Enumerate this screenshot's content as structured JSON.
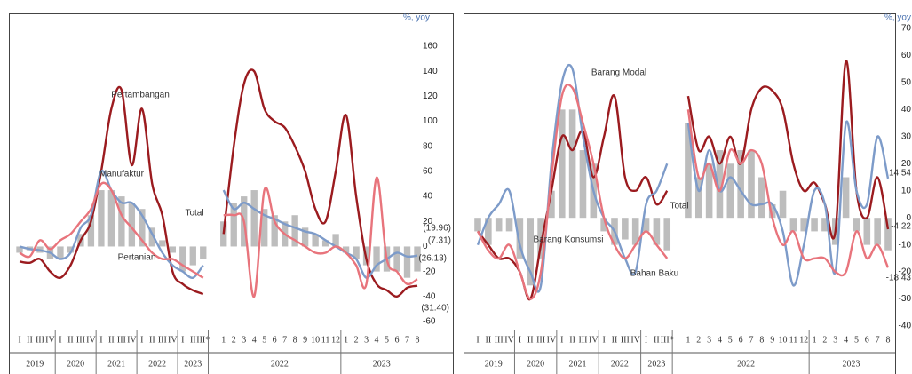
{
  "chart_data": [
    {
      "type": "line",
      "unit": "%, yoy",
      "categories": [
        "I",
        "II",
        "III",
        "IV",
        "I",
        "II",
        "III",
        "IV",
        "I",
        "II",
        "III",
        "IV",
        "I",
        "II",
        "III",
        "IV",
        "I",
        "II",
        "III*",
        null,
        "1",
        "2",
        "3",
        "4",
        "5",
        "6",
        "7",
        "8",
        "9",
        "10",
        "11",
        "12",
        "1",
        "2",
        "3",
        "4",
        "5",
        "6",
        "7",
        "8"
      ],
      "groups": [
        {
          "label": "2019",
          "span": 4
        },
        {
          "label": "2020",
          "span": 4
        },
        {
          "label": "2021",
          "span": 4
        },
        {
          "label": "2022",
          "span": 4
        },
        {
          "label": "2023",
          "span": 3
        },
        {
          "label": "2022",
          "span": 12
        },
        {
          "label": "2023",
          "span": 8
        }
      ],
      "ylim": [
        -60,
        160
      ],
      "yticks": [
        -60,
        -40,
        -20,
        0,
        20,
        40,
        60,
        80,
        100,
        120,
        140,
        160
      ],
      "series": [
        {
          "name": "Total",
          "type": "bar",
          "color": "#bdbdbd",
          "values": [
            -5,
            -3,
            -5,
            -10,
            -10,
            -5,
            10,
            25,
            45,
            45,
            40,
            35,
            30,
            15,
            5,
            -5,
            -20,
            -15,
            -10,
            null,
            20,
            35,
            40,
            45,
            30,
            25,
            20,
            25,
            15,
            10,
            5,
            10,
            -5,
            -10,
            -15,
            -20,
            -20,
            -20,
            -25,
            -19.96
          ],
          "value_labels": [
            null,
            null,
            null,
            null,
            null,
            null,
            null,
            null,
            null,
            null,
            null,
            null,
            null,
            null,
            null,
            null,
            null,
            null,
            null,
            null,
            null,
            null,
            null,
            null,
            null,
            null,
            null,
            null,
            null,
            null,
            null,
            null,
            null,
            null,
            null,
            null,
            null,
            null,
            null,
            "(19.96)"
          ]
        },
        {
          "name": "Pertambangan",
          "type": "line",
          "color": "#9b1b1f",
          "values": [
            -12,
            -13,
            -10,
            -20,
            -25,
            -15,
            5,
            20,
            60,
            110,
            125,
            65,
            110,
            50,
            25,
            -20,
            -30,
            -35,
            -38,
            null,
            10,
            80,
            130,
            140,
            110,
            100,
            95,
            80,
            60,
            30,
            20,
            60,
            105,
            40,
            -10,
            -30,
            -35,
            -40,
            -33,
            -31.4
          ],
          "value_labels": [
            null,
            null,
            null,
            null,
            null,
            null,
            null,
            null,
            null,
            null,
            null,
            null,
            null,
            null,
            null,
            null,
            null,
            null,
            null,
            null,
            null,
            null,
            null,
            null,
            null,
            null,
            null,
            null,
            null,
            null,
            null,
            null,
            null,
            null,
            null,
            null,
            null,
            null,
            null,
            "(31.40)"
          ]
        },
        {
          "name": "Manufaktur",
          "type": "line",
          "color": "#7d9bc9",
          "values": [
            0,
            -2,
            -3,
            -5,
            -10,
            -5,
            15,
            25,
            60,
            45,
            35,
            35,
            25,
            10,
            -5,
            -15,
            -20,
            -25,
            -15,
            null,
            45,
            30,
            35,
            30,
            25,
            22,
            18,
            15,
            12,
            10,
            5,
            0,
            -5,
            -10,
            -25,
            -15,
            -10,
            -5,
            -8,
            -7.31
          ],
          "value_labels": [
            null,
            null,
            null,
            null,
            null,
            null,
            null,
            null,
            null,
            null,
            null,
            null,
            null,
            null,
            null,
            null,
            null,
            null,
            null,
            null,
            null,
            null,
            null,
            null,
            null,
            null,
            null,
            null,
            null,
            null,
            null,
            null,
            null,
            null,
            null,
            null,
            null,
            null,
            null,
            "(7.31)"
          ]
        },
        {
          "name": "Pertanian",
          "type": "line",
          "color": "#e8747c",
          "values": [
            -5,
            -8,
            5,
            -2,
            5,
            10,
            20,
            30,
            50,
            45,
            25,
            15,
            5,
            -5,
            -10,
            -10,
            -15,
            -20,
            -25,
            null,
            25,
            25,
            20,
            -40,
            45,
            20,
            10,
            5,
            0,
            -5,
            -5,
            0,
            -5,
            -15,
            -30,
            55,
            -10,
            -20,
            -30,
            -26.13
          ],
          "value_labels": [
            null,
            null,
            null,
            null,
            null,
            null,
            null,
            null,
            null,
            null,
            null,
            null,
            null,
            null,
            null,
            null,
            null,
            null,
            null,
            null,
            null,
            null,
            null,
            null,
            null,
            null,
            null,
            null,
            null,
            null,
            null,
            null,
            null,
            null,
            null,
            null,
            null,
            null,
            null,
            "(26.13)"
          ]
        }
      ]
    },
    {
      "type": "line",
      "unit": "%, yoy",
      "categories": [
        "I",
        "II",
        "III",
        "IV",
        "I",
        "II",
        "III",
        "IV",
        "I",
        "II",
        "III",
        "IV",
        "I",
        "II",
        "III",
        "IV",
        "I",
        "II",
        "III*",
        null,
        "1",
        "2",
        "3",
        "4",
        "5",
        "6",
        "7",
        "8",
        "9",
        "10",
        "11",
        "12",
        "1",
        "2",
        "3",
        "4",
        "5",
        "6",
        "7",
        "8"
      ],
      "groups": [
        {
          "label": "2019",
          "span": 4
        },
        {
          "label": "2020",
          "span": 4
        },
        {
          "label": "2021",
          "span": 4
        },
        {
          "label": "2022",
          "span": 4
        },
        {
          "label": "2023",
          "span": 3
        },
        {
          "label": "2022",
          "span": 12
        },
        {
          "label": "2023",
          "span": 8
        }
      ],
      "ylim": [
        -40,
        70
      ],
      "yticks": [
        -40,
        -30,
        -20,
        -10,
        0,
        10,
        20,
        30,
        40,
        50,
        60,
        70
      ],
      "series": [
        {
          "name": "Total",
          "type": "bar",
          "color": "#bdbdbd",
          "values": [
            -5,
            -10,
            -5,
            -5,
            -15,
            -25,
            -15,
            10,
            40,
            40,
            25,
            20,
            -5,
            -10,
            -8,
            -10,
            -5,
            -10,
            -12,
            null,
            35,
            15,
            20,
            25,
            20,
            25,
            25,
            15,
            5,
            10,
            -5,
            -5,
            -5,
            -5,
            -10,
            15,
            -5,
            -10,
            -10,
            -12
          ]
        },
        {
          "name": "Barang Modal",
          "type": "line",
          "color": "#9b1b1f",
          "label_last": true,
          "values": [
            -5,
            -10,
            -15,
            -15,
            -20,
            -30,
            -10,
            10,
            30,
            25,
            32,
            15,
            30,
            45,
            15,
            10,
            15,
            5,
            10,
            null,
            45,
            25,
            30,
            20,
            30,
            20,
            40,
            48,
            47,
            40,
            20,
            10,
            13,
            5,
            -5,
            58,
            10,
            0,
            15,
            -4.22
          ]
        },
        {
          "name": "Barang Konsumsi",
          "type": "line",
          "color": "#7d9bc9",
          "label_last": true,
          "values": [
            -10,
            0,
            5,
            10,
            -10,
            -20,
            -25,
            20,
            50,
            55,
            30,
            10,
            0,
            -5,
            -15,
            -20,
            5,
            10,
            20,
            null,
            35,
            10,
            25,
            10,
            15,
            10,
            5,
            5,
            5,
            -5,
            -25,
            -10,
            10,
            5,
            -20,
            35,
            10,
            5,
            30,
            14.54
          ]
        },
        {
          "name": "Bahan Baku",
          "type": "line",
          "color": "#e8747c",
          "label_last": true,
          "values": [
            -5,
            -12,
            -15,
            -10,
            -20,
            -30,
            -20,
            15,
            45,
            48,
            35,
            20,
            0,
            -10,
            -15,
            -10,
            -5,
            -10,
            -15,
            null,
            40,
            15,
            20,
            10,
            25,
            20,
            25,
            20,
            0,
            -10,
            -5,
            -15,
            -15,
            -15,
            -20,
            -20,
            -5,
            -15,
            -10,
            -18.43
          ]
        }
      ]
    }
  ]
}
